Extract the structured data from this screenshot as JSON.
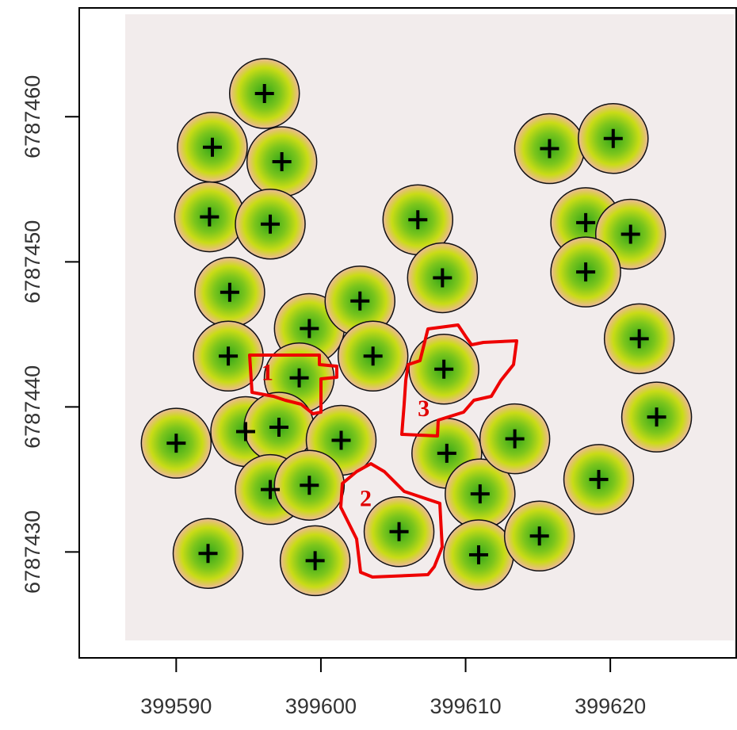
{
  "chart_data": {
    "type": "scatter",
    "xlim": [
      399583.3,
      399628.7
    ],
    "ylim": [
      6787422.7,
      6787467.5
    ],
    "xticks": [
      399590,
      399600,
      399610,
      399620
    ],
    "yticks": [
      6787430,
      6787440,
      6787450,
      6787460
    ],
    "x": [
      399596.1,
      399592.5,
      399597.3,
      399592.3,
      399596.5,
      399593.7,
      399593.6,
      399599.2,
      399598.5,
      399594.8,
      399597.1,
      399590.0,
      399601.4,
      399596.5,
      399599.2,
      399592.2,
      399599.6,
      399602.7,
      399603.6,
      399606.7,
      399608.4,
      399608.5,
      399608.7,
      399605.4,
      399611.0,
      399610.9,
      399613.4,
      399615.1,
      399619.2,
      399615.8,
      399620.2,
      399618.3,
      399621.4,
      399618.3,
      399622.0,
      399623.2
    ],
    "y": [
      6787461.6,
      6787457.9,
      6787456.9,
      6787453.1,
      6787452.6,
      6787447.9,
      6787443.5,
      6787445.4,
      6787442.0,
      6787438.3,
      6787438.6,
      6787437.5,
      6787437.7,
      6787434.3,
      6787434.6,
      6787429.9,
      6787429.4,
      6787447.3,
      6787443.5,
      6787452.9,
      6787448.9,
      6787442.6,
      6787436.8,
      6787431.4,
      6787434.0,
      6787429.8,
      6787437.8,
      6787431.1,
      6787435.0,
      6787457.8,
      6787458.5,
      6787452.7,
      6787451.9,
      6787449.3,
      6787444.7,
      6787439.3
    ],
    "color": "#000000",
    "annotations": [
      {
        "text": "1",
        "x": 399596.3,
        "y": 6787442.4
      },
      {
        "text": "2",
        "x": 399603.1,
        "y": 6787433.7
      },
      {
        "text": "3",
        "x": 399607.1,
        "y": 6787439.9
      }
    ]
  }
}
